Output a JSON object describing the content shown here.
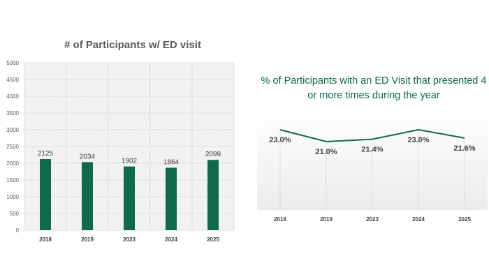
{
  "chart_data": [
    {
      "type": "bar",
      "title": "# of Participants w/ ED visit",
      "categories": [
        "2018",
        "2019",
        "2023",
        "2024",
        "2025"
      ],
      "values": [
        2125,
        2034,
        1902,
        1864,
        2099
      ],
      "data_labels": [
        "2125",
        "2034",
        "1902",
        "1864",
        "2099"
      ],
      "ylim": [
        0,
        5000
      ],
      "yticks": [
        0,
        500,
        1000,
        1500,
        2000,
        2500,
        3000,
        3500,
        4000,
        4500,
        5000
      ],
      "grid": true,
      "color": "#0d6b49"
    },
    {
      "type": "line",
      "title": "% of Participants with an ED Visit that presented 4 or more times during the year",
      "categories": [
        "2018",
        "2019",
        "2023",
        "2024",
        "2025"
      ],
      "values": [
        23.0,
        21.0,
        21.4,
        23.0,
        21.6
      ],
      "data_labels": [
        "23.0%",
        "21.0%",
        "21.4%",
        "23.0%",
        "21.6%"
      ],
      "grid": true,
      "color": "#0d6b49"
    }
  ]
}
